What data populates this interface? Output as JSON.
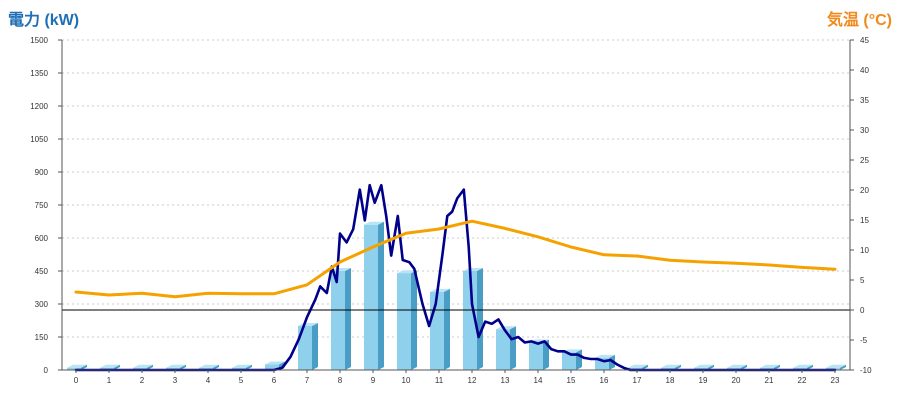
{
  "header": {
    "left_axis_title": "電力 (kW)",
    "right_axis_title": "気温 (°C)"
  },
  "chart_data": {
    "type": "bar",
    "xlabel": "",
    "ylabel": "電力 (kW)",
    "y2label": "気温 (°C)",
    "grid": true,
    "ylim": [
      0,
      1500
    ],
    "y_ticks": [
      0,
      150,
      300,
      450,
      600,
      750,
      900,
      1050,
      1200,
      1350,
      1500
    ],
    "y2lim": [
      -10,
      45
    ],
    "y2_ticks": [
      -10,
      -5,
      0,
      5,
      10,
      15,
      20,
      25,
      30,
      35,
      40,
      45
    ],
    "categories": [
      "0",
      "1",
      "2",
      "3",
      "4",
      "5",
      "6",
      "7",
      "8",
      "9",
      "10",
      "11",
      "12",
      "13",
      "14",
      "15",
      "16",
      "17",
      "18",
      "19",
      "20",
      "21",
      "22",
      "23"
    ],
    "colors": {
      "bar_face": "#8fd0ec",
      "bar_side": "#4a9dc4",
      "power_line": "#00008b",
      "temperature_line": "#f5a100",
      "grid": "#bbbbbb",
      "zero_line": "#000000"
    },
    "series": [
      {
        "kind": "bar",
        "axis": "left",
        "values": [
          10,
          10,
          10,
          10,
          10,
          10,
          25,
          200,
          450,
          660,
          440,
          355,
          450,
          185,
          125,
          80,
          55,
          10,
          10,
          10,
          10,
          10,
          10,
          10
        ]
      },
      {
        "kind": "line",
        "axis": "left",
        "points": [
          [
            0,
            0
          ],
          [
            6,
            0
          ],
          [
            6.25,
            10
          ],
          [
            6.5,
            60
          ],
          [
            6.75,
            140
          ],
          [
            7,
            240
          ],
          [
            7.25,
            320
          ],
          [
            7.4,
            380
          ],
          [
            7.6,
            350
          ],
          [
            7.75,
            470
          ],
          [
            7.9,
            400
          ],
          [
            8.0,
            620
          ],
          [
            8.2,
            580
          ],
          [
            8.4,
            640
          ],
          [
            8.6,
            820
          ],
          [
            8.75,
            680
          ],
          [
            8.9,
            840
          ],
          [
            9.05,
            760
          ],
          [
            9.25,
            840
          ],
          [
            9.4,
            700
          ],
          [
            9.55,
            520
          ],
          [
            9.75,
            700
          ],
          [
            9.9,
            500
          ],
          [
            10.1,
            490
          ],
          [
            10.25,
            460
          ],
          [
            10.5,
            300
          ],
          [
            10.7,
            200
          ],
          [
            10.9,
            300
          ],
          [
            11.1,
            520
          ],
          [
            11.25,
            700
          ],
          [
            11.4,
            720
          ],
          [
            11.55,
            780
          ],
          [
            11.75,
            820
          ],
          [
            11.9,
            560
          ],
          [
            12.0,
            300
          ],
          [
            12.2,
            150
          ],
          [
            12.4,
            220
          ],
          [
            12.6,
            210
          ],
          [
            12.8,
            230
          ],
          [
            13.0,
            180
          ],
          [
            13.2,
            140
          ],
          [
            13.4,
            150
          ],
          [
            13.6,
            125
          ],
          [
            13.8,
            130
          ],
          [
            14.0,
            120
          ],
          [
            14.2,
            130
          ],
          [
            14.4,
            95
          ],
          [
            14.6,
            85
          ],
          [
            14.8,
            85
          ],
          [
            15.0,
            70
          ],
          [
            15.2,
            70
          ],
          [
            15.4,
            55
          ],
          [
            15.6,
            50
          ],
          [
            15.8,
            50
          ],
          [
            16.0,
            40
          ],
          [
            16.2,
            45
          ],
          [
            16.4,
            25
          ],
          [
            16.6,
            10
          ],
          [
            16.8,
            0
          ],
          [
            23,
            0
          ]
        ]
      },
      {
        "kind": "line",
        "axis": "right",
        "points": [
          [
            0,
            3
          ],
          [
            1,
            2.5
          ],
          [
            2,
            2.8
          ],
          [
            3,
            2.2
          ],
          [
            4,
            2.8
          ],
          [
            5,
            2.7
          ],
          [
            6,
            2.7
          ],
          [
            7,
            4.2
          ],
          [
            8,
            8
          ],
          [
            9,
            10.5
          ],
          [
            10,
            12.8
          ],
          [
            11,
            13.5
          ],
          [
            12,
            14.8
          ],
          [
            13,
            13.6
          ],
          [
            14,
            12.2
          ],
          [
            15,
            10.5
          ],
          [
            16,
            9.2
          ],
          [
            17,
            9.0
          ],
          [
            18,
            8.3
          ],
          [
            19,
            8.0
          ],
          [
            20,
            7.8
          ],
          [
            21,
            7.5
          ],
          [
            22,
            7.1
          ],
          [
            23,
            6.8
          ]
        ]
      }
    ]
  }
}
